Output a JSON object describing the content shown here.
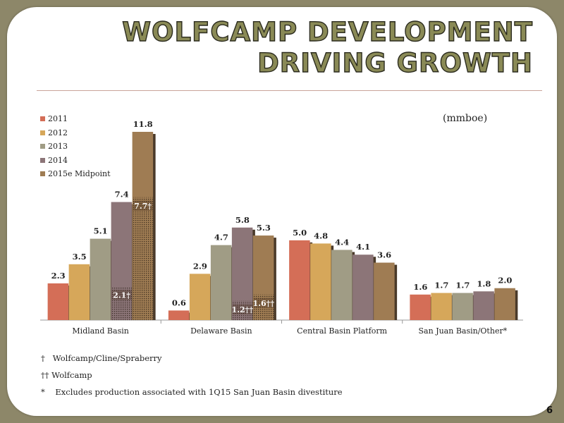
{
  "header": {
    "title_line1": "WOLFCAMP DEVELOPMENT",
    "title_line2": "DRIVING GROWTH"
  },
  "unit_label": "(mmboe)",
  "page_number": "6",
  "colors": {
    "background": "#8d8769",
    "title_fill": "#8a8a56",
    "rule": "#c9a49a"
  },
  "chart_data": {
    "type": "bar",
    "categories": [
      "Midland Basin",
      "Delaware Basin",
      "Central Basin Platform",
      "San Juan Basin/Other*"
    ],
    "series": [
      {
        "name": "2011",
        "color": "#d46e57",
        "values": [
          2.3,
          0.6,
          5.0,
          1.6
        ],
        "labels": [
          "2.3",
          "0.6",
          "5.0",
          "1.6"
        ]
      },
      {
        "name": "2012",
        "color": "#d6a75a",
        "values": [
          3.5,
          2.9,
          4.8,
          1.7
        ],
        "labels": [
          "3.5",
          "2.9",
          "4.8",
          "1.7"
        ]
      },
      {
        "name": "2013",
        "color": "#a09c85",
        "values": [
          5.1,
          4.7,
          4.4,
          1.7
        ],
        "labels": [
          "5.1",
          "4.7",
          "4.4",
          "1.7"
        ]
      },
      {
        "name": "2014",
        "color": "#8c7578",
        "values": [
          7.4,
          5.8,
          4.1,
          1.8
        ],
        "labels": [
          "7.4",
          "5.8",
          "4.1",
          "1.8"
        ]
      },
      {
        "name": "2015e Midpoint",
        "color": "#9f7c53",
        "values": [
          11.8,
          5.3,
          3.6,
          2.0
        ],
        "labels": [
          "11.8",
          "5.3",
          "3.6",
          "2.0"
        ]
      }
    ],
    "wolfcamp_portion": [
      {
        "category": "Midland Basin",
        "series": "2014",
        "value": 2.1,
        "label": "2.1†"
      },
      {
        "category": "Midland Basin",
        "series": "2015e Midpoint",
        "value": 7.7,
        "label": "7.7†"
      },
      {
        "category": "Delaware Basin",
        "series": "2014",
        "value": 1.2,
        "label": "1.2††"
      },
      {
        "category": "Delaware Basin",
        "series": "2015e Midpoint",
        "value": 1.6,
        "label": "1.6††"
      }
    ],
    "ylim": [
      0,
      12
    ],
    "grid": false,
    "legend_position": "top-left"
  },
  "footnotes": [
    "†   Wolfcamp/Cline/Spraberry",
    "†† Wolfcamp",
    "*    Excludes production associated with 1Q15 San Juan Basin divestiture"
  ]
}
